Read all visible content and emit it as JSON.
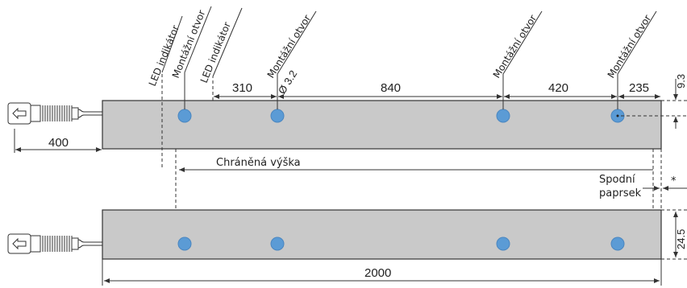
{
  "labels": {
    "led1": "LED indikátor",
    "mount1": "Montážní otvor",
    "led2": "LED indikátor",
    "mount2": "Montážní otvor",
    "mount3": "Montážní otvor",
    "mount4": "Montážní otvor",
    "hole_diameter": "Ø 3.2",
    "protected_height": "Chráněná výška",
    "bottom_beam_line1": "Spodní",
    "bottom_beam_line2": "paprsek",
    "asterisk": "*"
  },
  "dimensions": {
    "cable": "400",
    "d1": "310",
    "d2": "840",
    "d3": "420",
    "d4": "235",
    "top_offset": "9.3",
    "height": "24.5",
    "total_length": "2000"
  },
  "colors": {
    "bar": "#c9c9c9",
    "hole": "#5b9bd5"
  }
}
